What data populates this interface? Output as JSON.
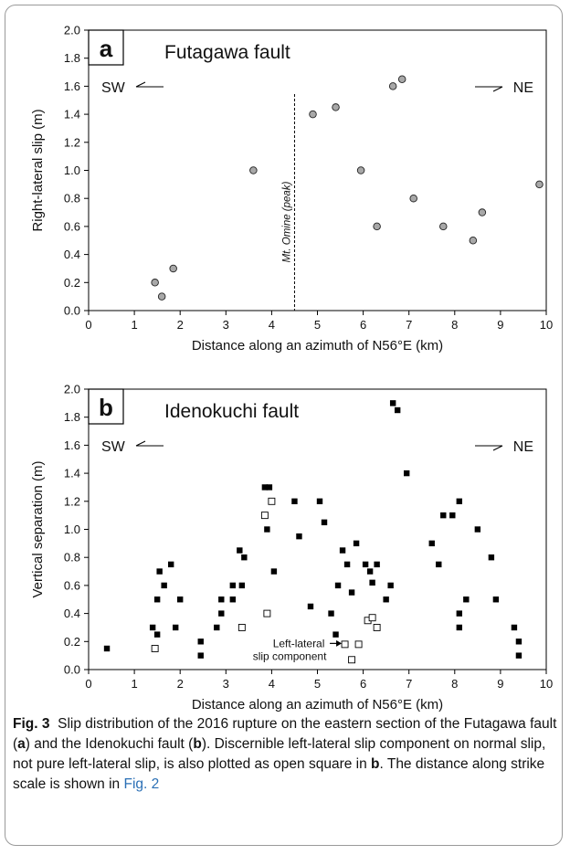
{
  "chart_data": [
    {
      "type": "scatter",
      "panel_label": "a",
      "title": "Futagawa fault",
      "xlabel": "Distance along an azimuth of N56°E (km)",
      "ylabel": "Right-lateral slip (m)",
      "xlim": [
        0,
        10
      ],
      "ylim": [
        0,
        2.0
      ],
      "xticks": [
        "0",
        "1",
        "2",
        "3",
        "4",
        "5",
        "6",
        "7",
        "8",
        "9",
        "10"
      ],
      "yticks": [
        "0.0",
        "0.2",
        "0.4",
        "0.6",
        "0.8",
        "1.0",
        "1.2",
        "1.4",
        "1.6",
        "1.8",
        "2.0"
      ],
      "grid": false,
      "direction_left": "SW",
      "direction_right": "NE",
      "vline": {
        "x": 4.5,
        "label": "Mt. Omine (peak)"
      },
      "series": [
        {
          "marker": "gray-circle",
          "points": [
            [
              1.45,
              0.2
            ],
            [
              1.6,
              0.1
            ],
            [
              1.85,
              0.3
            ],
            [
              3.6,
              1.0
            ],
            [
              4.9,
              1.4
            ],
            [
              5.4,
              1.45
            ],
            [
              5.95,
              1.0
            ],
            [
              6.3,
              0.6
            ],
            [
              6.65,
              1.6
            ],
            [
              6.85,
              1.65
            ],
            [
              7.1,
              0.8
            ],
            [
              7.75,
              0.6
            ],
            [
              8.4,
              0.5
            ],
            [
              8.6,
              0.7
            ],
            [
              9.85,
              0.9
            ]
          ]
        }
      ]
    },
    {
      "type": "scatter",
      "panel_label": "b",
      "title": "Idenokuchi fault",
      "xlabel": "Distance along an azimuth of N56°E (km)",
      "ylabel": "Vertical separation (m)",
      "xlim": [
        0,
        10
      ],
      "ylim": [
        0,
        2.0
      ],
      "xticks": [
        "0",
        "1",
        "2",
        "3",
        "4",
        "5",
        "6",
        "7",
        "8",
        "9",
        "10"
      ],
      "yticks": [
        "0.0",
        "0.2",
        "0.4",
        "0.6",
        "0.8",
        "1.0",
        "1.2",
        "1.4",
        "1.6",
        "1.8",
        "2.0"
      ],
      "grid": false,
      "direction_left": "SW",
      "direction_right": "NE",
      "annotation": {
        "line1": "Left-lateral",
        "line2": "slip component",
        "x": 5.65,
        "y": 0.18
      },
      "series": [
        {
          "marker": "filled-square",
          "points": [
            [
              0.4,
              0.15
            ],
            [
              1.4,
              0.3
            ],
            [
              1.5,
              0.25
            ],
            [
              1.5,
              0.5
            ],
            [
              1.55,
              0.7
            ],
            [
              1.65,
              0.6
            ],
            [
              1.8,
              0.75
            ],
            [
              1.9,
              0.3
            ],
            [
              2.0,
              0.5
            ],
            [
              2.45,
              0.2
            ],
            [
              2.45,
              0.1
            ],
            [
              2.8,
              0.3
            ],
            [
              2.9,
              0.5
            ],
            [
              2.9,
              0.4
            ],
            [
              3.15,
              0.5
            ],
            [
              3.15,
              0.6
            ],
            [
              3.3,
              0.85
            ],
            [
              3.35,
              0.6
            ],
            [
              3.4,
              0.8
            ],
            [
              3.85,
              1.3
            ],
            [
              3.95,
              1.3
            ],
            [
              3.9,
              1.0
            ],
            [
              4.05,
              0.7
            ],
            [
              4.5,
              1.2
            ],
            [
              4.6,
              0.95
            ],
            [
              5.05,
              1.2
            ],
            [
              5.15,
              1.05
            ],
            [
              4.85,
              0.45
            ],
            [
              5.3,
              0.4
            ],
            [
              5.4,
              0.25
            ],
            [
              5.45,
              0.6
            ],
            [
              5.55,
              0.85
            ],
            [
              5.65,
              0.75
            ],
            [
              5.85,
              0.9
            ],
            [
              5.75,
              0.55
            ],
            [
              6.05,
              0.75
            ],
            [
              6.15,
              0.7
            ],
            [
              6.2,
              0.62
            ],
            [
              6.3,
              0.75
            ],
            [
              6.5,
              0.5
            ],
            [
              6.6,
              0.6
            ],
            [
              6.65,
              1.9
            ],
            [
              6.75,
              1.85
            ],
            [
              6.95,
              1.4
            ],
            [
              7.5,
              0.9
            ],
            [
              7.65,
              0.75
            ],
            [
              7.75,
              1.1
            ],
            [
              7.95,
              1.1
            ],
            [
              8.1,
              1.2
            ],
            [
              8.1,
              0.4
            ],
            [
              8.1,
              0.3
            ],
            [
              8.25,
              0.5
            ],
            [
              8.5,
              1.0
            ],
            [
              8.8,
              0.8
            ],
            [
              8.9,
              0.5
            ],
            [
              9.3,
              0.3
            ],
            [
              9.4,
              0.2
            ],
            [
              9.4,
              0.1
            ]
          ]
        },
        {
          "marker": "open-square",
          "points": [
            [
              1.45,
              0.15
            ],
            [
              3.35,
              0.3
            ],
            [
              3.85,
              1.1
            ],
            [
              3.9,
              0.4
            ],
            [
              4.0,
              1.2
            ],
            [
              5.6,
              0.18
            ],
            [
              5.75,
              0.07
            ],
            [
              5.9,
              0.18
            ],
            [
              6.1,
              0.35
            ],
            [
              6.2,
              0.37
            ],
            [
              6.3,
              0.3
            ]
          ]
        }
      ]
    }
  ],
  "caption": {
    "label": "Fig. 3",
    "seg1": "Slip distribution of the 2016 rupture on the eastern section of the Futagawa fault (",
    "a": "a",
    "seg2": ") and the Idenokuchi fault (",
    "b": "b",
    "seg3": "). Discernible left-lateral slip component on normal slip, not pure left-lateral slip, is also plotted as open square in ",
    "b2": "b",
    "seg4": ". The distance along strike scale is shown in ",
    "figref": "Fig. 2"
  }
}
